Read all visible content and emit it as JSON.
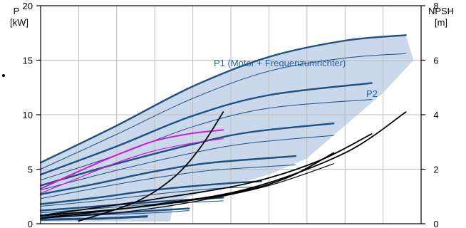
{
  "colors": {
    "band_fill": "#c9d8ea",
    "curve_blue_bold": "#1f4f80",
    "curve_blue_thin": "#1f4f80",
    "magenta": "#d21ad2",
    "npsh": "#000000",
    "grid": "#bdbdbd",
    "label_blue": "#1f5f9f"
  },
  "chart_data": {
    "type": "line",
    "x": [
      0,
      1,
      2,
      3,
      4,
      5,
      6,
      7,
      8,
      9,
      10
    ],
    "xlim": [
      0,
      10
    ],
    "y_left": {
      "label_line1": "P",
      "label_line2": "[kW]",
      "ylim": [
        0,
        20
      ],
      "ticks": [
        0,
        5,
        10,
        15,
        20
      ]
    },
    "y_right": {
      "label_line1": "NPSH",
      "label_line2": "[m]",
      "ylim": [
        0,
        8
      ],
      "ticks": [
        0,
        2,
        4,
        6,
        8
      ]
    },
    "annotations": [
      {
        "text": "P1 (Motor + Frequenzumrichter)",
        "x": 4.9,
        "y": 18.2
      },
      {
        "text": "P2",
        "x": 9.2,
        "y": 14.9
      }
    ],
    "series": [
      {
        "group": "P1",
        "weight": "bold",
        "x": [
          0,
          2,
          4,
          6,
          8,
          9.6
        ],
        "values": [
          5.6,
          9.0,
          12.6,
          15.3,
          16.8,
          17.3
        ]
      },
      {
        "group": "P2",
        "weight": "thin",
        "x": [
          0,
          2,
          4,
          6,
          8,
          9.6
        ],
        "values": [
          5.0,
          8.2,
          11.5,
          14.0,
          15.2,
          15.6
        ]
      },
      {
        "group": "P1",
        "weight": "bold",
        "x": [
          0,
          2,
          4,
          6,
          8.7
        ],
        "values": [
          4.5,
          7.1,
          9.9,
          11.8,
          12.9
        ]
      },
      {
        "group": "P2",
        "weight": "thin",
        "x": [
          0,
          2,
          4,
          6,
          8.7
        ],
        "values": [
          4.0,
          6.3,
          8.9,
          10.6,
          11.4
        ]
      },
      {
        "group": "P1",
        "weight": "bold",
        "x": [
          0,
          2,
          4,
          5.5,
          7.7
        ],
        "values": [
          3.5,
          5.5,
          7.3,
          8.4,
          9.2
        ]
      },
      {
        "group": "P2",
        "weight": "thin",
        "x": [
          0,
          2,
          4,
          5.5,
          7.7
        ],
        "values": [
          3.1,
          4.9,
          6.5,
          7.4,
          8.1
        ]
      },
      {
        "group": "P1",
        "weight": "bold",
        "x": [
          0,
          1.5,
          3,
          4.5,
          6.7
        ],
        "values": [
          2.7,
          3.7,
          4.8,
          5.6,
          6.2
        ]
      },
      {
        "group": "P2",
        "weight": "thin",
        "x": [
          0,
          1.5,
          3,
          4.5,
          6.7
        ],
        "values": [
          2.3,
          3.3,
          4.2,
          4.9,
          5.4
        ]
      },
      {
        "group": "P1",
        "weight": "bold",
        "x": [
          0,
          1.5,
          3,
          4.5,
          5.8
        ],
        "values": [
          1.8,
          2.4,
          3.1,
          3.6,
          3.9
        ]
      },
      {
        "group": "P2",
        "weight": "thin",
        "x": [
          0,
          1.5,
          3,
          4.5,
          5.8
        ],
        "values": [
          1.6,
          2.1,
          2.7,
          3.2,
          3.4
        ]
      },
      {
        "group": "P1",
        "weight": "bold",
        "x": [
          0,
          1.5,
          3,
          4.8
        ],
        "values": [
          1.2,
          1.6,
          2.0,
          2.4
        ]
      },
      {
        "group": "P2",
        "weight": "thin",
        "x": [
          0,
          1.5,
          3,
          4.8
        ],
        "values": [
          1.0,
          1.4,
          1.8,
          2.1
        ]
      },
      {
        "group": "P1",
        "weight": "bold",
        "x": [
          0,
          1.5,
          3,
          3.9
        ],
        "values": [
          0.7,
          0.9,
          1.2,
          1.4
        ]
      },
      {
        "group": "P2",
        "weight": "thin",
        "x": [
          0,
          1.5,
          3,
          3.9
        ],
        "values": [
          0.6,
          0.8,
          1.0,
          1.2
        ]
      },
      {
        "group": "P1",
        "weight": "bold",
        "x": [
          0,
          1.5,
          2.8
        ],
        "values": [
          0.4,
          0.5,
          0.7
        ]
      },
      {
        "group": "P2",
        "weight": "thin",
        "x": [
          0,
          1.5,
          2.8
        ],
        "values": [
          0.3,
          0.4,
          0.6
        ]
      },
      {
        "group": "magenta",
        "weight": "bold",
        "x": [
          0,
          1,
          2,
          3,
          4,
          4.8
        ],
        "values": [
          3.2,
          4.8,
          6.3,
          7.6,
          8.3,
          8.6
        ]
      },
      {
        "group": "magenta",
        "weight": "thin",
        "x": [
          0,
          1,
          2,
          3,
          4,
          4.8
        ],
        "values": [
          2.8,
          4.2,
          5.6,
          6.7,
          7.4,
          7.8
        ]
      },
      {
        "group": "NPSH",
        "weight": "bold",
        "x": [
          1.0,
          2.5,
          3.5,
          4.2,
          4.8
        ],
        "values_npsh": [
          0.1,
          0.8,
          1.7,
          2.8,
          4.1
        ]
      },
      {
        "group": "NPSH",
        "weight": "bold",
        "x": [
          0.0,
          3.0,
          5.5,
          7.3,
          8.7
        ],
        "values_npsh": [
          0.3,
          0.9,
          1.5,
          2.3,
          3.3
        ]
      },
      {
        "group": "NPSH",
        "weight": "bold",
        "x": [
          0.0,
          3.0,
          5.5,
          8.0,
          9.6
        ],
        "values_npsh": [
          0.2,
          0.7,
          1.3,
          2.6,
          4.1
        ]
      },
      {
        "group": "NPSH",
        "weight": "bold",
        "x": [
          0.0,
          2.5,
          5.0,
          6.5,
          7.7
        ],
        "values_npsh": [
          0.3,
          0.6,
          1.1,
          1.7,
          2.6
        ]
      },
      {
        "group": "NPSH",
        "weight": "thin",
        "x": [
          0.0,
          2.0,
          4.0,
          6.0,
          7.7
        ],
        "values_npsh": [
          0.2,
          0.4,
          0.8,
          1.4,
          2.2
        ]
      }
    ],
    "band": {
      "upper_x": [
        0,
        2,
        4,
        6,
        8,
        9.6
      ],
      "upper_values": [
        5.6,
        9.0,
        12.6,
        15.3,
        16.8,
        17.3
      ],
      "lower_x": [
        9.8,
        9.0,
        8.0,
        7.0,
        6.0,
        5.0,
        4.0,
        3.5,
        3.4
      ],
      "lower_values": [
        15.0,
        12.0,
        9.0,
        6.0,
        4.5,
        3.5,
        2.6,
        2.0,
        0.2
      ]
    },
    "grid": true
  }
}
